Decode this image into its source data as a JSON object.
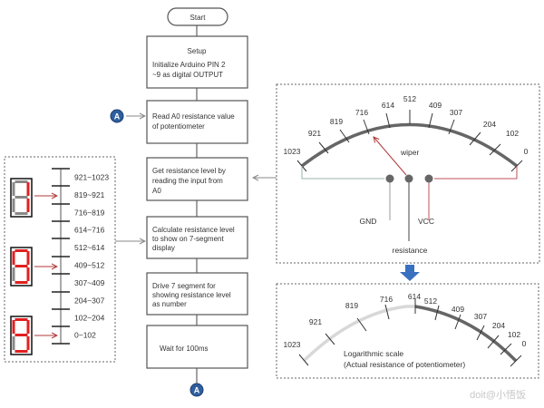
{
  "flowchart": {
    "start": "Start",
    "setup": [
      "Setup",
      "Initialize Arduino PIN 2",
      "~9 as digital OUTPUT"
    ],
    "read": [
      "Read A0 resistance value",
      "of potentiometer"
    ],
    "get": [
      "Get resistance level by",
      "reading the input from",
      "A0"
    ],
    "calculate": [
      "Calculate resistance level",
      "to show on 7-segment",
      "display"
    ],
    "drive": [
      "Drive 7 segment for",
      "showing resistance level",
      "as number"
    ],
    "wait": "Wait for 100ms",
    "connector": "A"
  },
  "levels": [
    "921~1023",
    "819~921",
    "716~819",
    "614~716",
    "512~614",
    "409~512",
    "307~409",
    "204~307",
    "102~204",
    "0~102"
  ],
  "displays": [
    {
      "digit": "9 (partially lit)"
    },
    {
      "digit": "5"
    },
    {
      "digit": "9"
    }
  ],
  "linear_gauge": {
    "ticks": [
      "1023",
      "921",
      "819",
      "716",
      "614",
      "512",
      "409",
      "307",
      "204",
      "102",
      "0"
    ],
    "wiper": "wiper",
    "gnd": "GND",
    "vcc": "VCC",
    "resistance": "resistance"
  },
  "log_gauge": {
    "ticks": [
      "1023",
      "921",
      "819",
      "716",
      "614",
      "512",
      "409",
      "307",
      "204",
      "102",
      "0"
    ],
    "caption": [
      "Logarithmic scale",
      "(Actual resistance of potentiometer)"
    ]
  },
  "watermark": "doit@小悟饭",
  "colors": {
    "connector": "#2e5f9e",
    "red": "#c0392b",
    "segment_red": "#e02020",
    "segment_off": "#888888",
    "arrow_blue": "#3a70c0"
  }
}
